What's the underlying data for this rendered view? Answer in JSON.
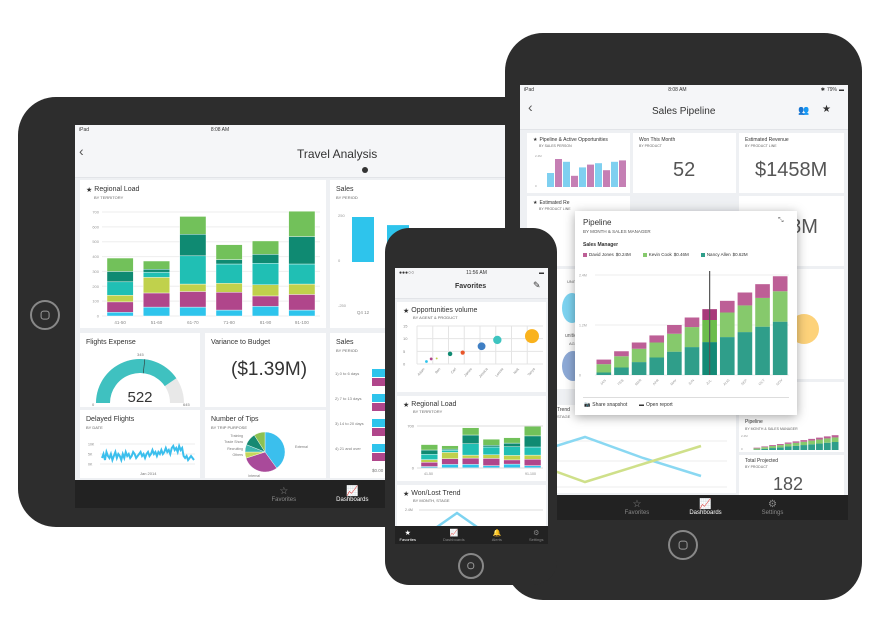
{
  "colors": {
    "cyan": "#2ec4ec",
    "magenta": "#b0468b",
    "lime": "#c0d14c",
    "teal": "#20bfb4",
    "darkteal": "#0f8a72",
    "green": "#72c15a",
    "nancy": "#2f9e8a",
    "kevin": "#86c96c",
    "david": "#bd5f96"
  },
  "left_ipad": {
    "status": {
      "device": "iPad",
      "time": "8:08 AM"
    },
    "title": "Travel Analysis",
    "regional_load": {
      "title": "Regional Load",
      "subtitle": "BY TERRITORY",
      "yticks": [
        "700",
        "600",
        "500",
        "400",
        "300",
        "200",
        "100",
        "0"
      ],
      "ymax": 700,
      "categories": [
        "41-50",
        "51-60",
        "61-70",
        "71-80",
        "81-90",
        "91-100"
      ],
      "stacks": [
        [
          25,
          70,
          45,
          90,
          70,
          90
        ],
        [
          60,
          95,
          105,
          35,
          20,
          55
        ],
        [
          60,
          105,
          50,
          190,
          145,
          120
        ],
        [
          40,
          120,
          60,
          130,
          30,
          100
        ],
        [
          65,
          70,
          75,
          145,
          60,
          90
        ],
        [
          40,
          105,
          70,
          135,
          185,
          170
        ]
      ]
    },
    "sales": {
      "title": "Sales",
      "subtitle": "BY PERIOD",
      "yticks": [
        "250",
        "0",
        "-250"
      ],
      "categories": [
        "Q4 12",
        "Q1 13"
      ],
      "values": [
        250,
        205
      ]
    },
    "flights_expense": {
      "title": "Flights Expense",
      "value": "522",
      "min": "0",
      "max": "645",
      "target": "345",
      "value_num": 522,
      "max_num": 645,
      "target_num": 345
    },
    "variance": {
      "title": "Variance to Budget",
      "value": "($1.39M)"
    },
    "sales2": {
      "title": "Sales",
      "subtitle": "BY PERIOD",
      "categories": [
        "1) 0 to 6 days",
        "2) 7 to 13 days",
        "3) 14 to 20 days",
        "4) 21 and over"
      ],
      "axis_label": "$0.00"
    },
    "delayed": {
      "title": "Delayed Flights",
      "subtitle": "BY DATE",
      "yticks": [
        "10K",
        "5K",
        "0K"
      ],
      "xlabel": "Jan 2014",
      "values": [
        3,
        5,
        2,
        6,
        4,
        3,
        5,
        2,
        4,
        6,
        3,
        5,
        4,
        2,
        5,
        3,
        6,
        4,
        5,
        3,
        4,
        6,
        5,
        3,
        4,
        5,
        6,
        4,
        5,
        3,
        5,
        6,
        4,
        5,
        7,
        5,
        6,
        4,
        6,
        5,
        7,
        5,
        6,
        8,
        6,
        7,
        5,
        8,
        9,
        7,
        8,
        6,
        9,
        7,
        8,
        4,
        3,
        4,
        2,
        3,
        4,
        3,
        2
      ]
    },
    "tips": {
      "title": "Number of Tips",
      "subtitle": "BY TRIP PURPOSE",
      "slices": [
        {
          "label": "External",
          "value": 40,
          "color": "#3bbfed"
        },
        {
          "label": "Internal",
          "value": 30,
          "color": "#a94a9a"
        },
        {
          "label": "Others",
          "value": 5,
          "color": "#c5d65a"
        },
        {
          "label": "Recruiting",
          "value": 6,
          "color": "#40b8b0"
        },
        {
          "label": "Trade Show",
          "value": 10,
          "color": "#168a72"
        },
        {
          "label": "Training",
          "value": 9,
          "color": "#8cc152"
        }
      ]
    },
    "nav": [
      {
        "label": "Favorites",
        "icon": "☆"
      },
      {
        "label": "Dashboards",
        "icon": "📈"
      }
    ]
  },
  "right_ipad": {
    "status": {
      "device": "iPad",
      "time": "8:08 AM",
      "battery": "79%"
    },
    "title": "Sales Pipeline",
    "pipeline_active": {
      "title": "Pipeline & Active Opportunities",
      "subtitle": "BY SALES PERSON",
      "yticks": [
        "2.4M",
        "0"
      ],
      "values": [
        1.0,
        2.0,
        1.8,
        0.8,
        1.4,
        1.6,
        1.7,
        1.2,
        1.8,
        1.9
      ]
    },
    "won": {
      "title": "Won This Month",
      "subtitle": "BY PRODUCT",
      "value": "52"
    },
    "est_revenue": {
      "title": "Estimated Revenue",
      "subtitle": "BY PRODUCT LINE",
      "value": "$1458M"
    },
    "est_revenue2": {
      "title": "Estimated Re",
      "subtitle": "BY PRODUCT LINE",
      "value": "58M"
    },
    "partial1": "UNITY SIZE",
    "partial2": "unities",
    "partial3": "AGENT",
    "popup": {
      "title": "Pipeline",
      "subtitle": "BY MONTH & SALES MANAGER",
      "legend_title": "Sales Manager",
      "legend": [
        {
          "name": "David Jones",
          "value": "$0.24M"
        },
        {
          "name": "Kevin Cook",
          "value": "$0.46M"
        },
        {
          "name": "Nancy Allen",
          "value": "$0.62M"
        }
      ],
      "yticks": [
        "2.4M",
        "1.2M",
        "0"
      ],
      "ymax": 2.4,
      "months": [
        "JAN",
        "FEB",
        "MAR",
        "APR",
        "MAY",
        "JUN",
        "JUL",
        "AUG",
        "SEP",
        "OCT",
        "NOV"
      ],
      "nancy": [
        0.06,
        0.18,
        0.31,
        0.42,
        0.56,
        0.67,
        0.79,
        0.91,
        1.03,
        1.16,
        1.28
      ],
      "kevin": [
        0.2,
        0.27,
        0.32,
        0.36,
        0.43,
        0.48,
        0.53,
        0.59,
        0.64,
        0.69,
        0.73
      ],
      "david": [
        0.11,
        0.12,
        0.15,
        0.17,
        0.21,
        0.23,
        0.26,
        0.28,
        0.31,
        0.33,
        0.36
      ],
      "selected": "JUL",
      "share": "Share snapshot",
      "open": "Open report"
    },
    "trend": {
      "title": "Trend",
      "subtitle": "STAGE",
      "series1": [
        60,
        90,
        55,
        25
      ],
      "series2": [
        50,
        15,
        45,
        75
      ]
    },
    "pipeline_small": {
      "title": "Pipeline",
      "subtitle": "BY MONTH & SALES MANAGER",
      "yticks": [
        "2.4M",
        "0"
      ]
    },
    "total": {
      "title": "Total Projected",
      "subtitle": "BY PRODUCT",
      "value": "182"
    },
    "nav": [
      {
        "label": "Favorites",
        "icon": "☆"
      },
      {
        "label": "Dashboards",
        "icon": "📈"
      },
      {
        "label": "Settings",
        "icon": "⚙"
      }
    ]
  },
  "phone": {
    "status": {
      "time": "11:56 AM"
    },
    "title": "Favorites",
    "opps": {
      "title": "Opportunities volume",
      "subtitle": "BY AGENT & PRODUCT",
      "yticks": [
        "15",
        "10",
        "5",
        "0"
      ],
      "agents": [
        "Adam",
        "Ben",
        "Carl",
        "James",
        "Jessica",
        "Lennie",
        "Nick",
        "Tanya"
      ],
      "points": [
        {
          "x": 0.1,
          "y": 1,
          "s": 1,
          "c": "#2ec4ec"
        },
        {
          "x": 0.4,
          "y": 2,
          "s": 1,
          "c": "#b0468b"
        },
        {
          "x": 0.75,
          "y": 2.2,
          "s": 0.7,
          "c": "#c0d14c"
        },
        {
          "x": 1.6,
          "y": 4,
          "s": 1.6,
          "c": "#0f8a72"
        },
        {
          "x": 2.4,
          "y": 4.5,
          "s": 1.5,
          "c": "#e8562a"
        },
        {
          "x": 3.6,
          "y": 7,
          "s": 2.8,
          "c": "#3f7fc4"
        },
        {
          "x": 4.6,
          "y": 9.5,
          "s": 3,
          "c": "#3ec4c0"
        },
        {
          "x": 6.8,
          "y": 11,
          "s": 5,
          "c": "#f9b21d"
        }
      ]
    },
    "regional": {
      "title": "Regional Load",
      "subtitle": "BY TERRITORY",
      "yticks": [
        "700",
        "0"
      ],
      "first": "41-50",
      "last": "91-100"
    },
    "wonlost": {
      "title": "Won/Lost Trend",
      "subtitle": "BY MONTH, STAGE",
      "ytick": "2.4M"
    },
    "nav": [
      {
        "label": "Favorites",
        "icon": "★"
      },
      {
        "label": "Dashboards",
        "icon": "📈"
      },
      {
        "label": "Alerts",
        "icon": "🔔"
      },
      {
        "label": "Settings",
        "icon": "⚙"
      }
    ]
  }
}
